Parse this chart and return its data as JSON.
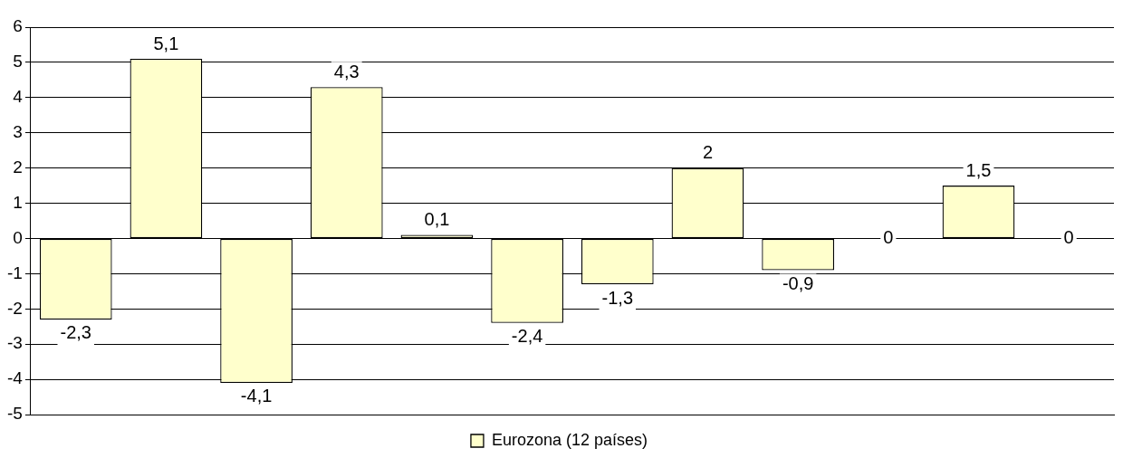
{
  "chart_data": {
    "type": "bar",
    "categories": [
      null,
      null,
      null,
      null,
      null,
      null,
      null,
      null,
      null,
      null,
      null,
      null
    ],
    "series": [
      {
        "name": "Eurozona (12 países)",
        "color": "#ffffcc",
        "values": [
          -2.3,
          5.1,
          -4.1,
          4.3,
          0.1,
          -2.4,
          -1.3,
          2,
          -0.9,
          0,
          1.5,
          0
        ],
        "value_labels": [
          "-2,3",
          "5,1",
          "-4,1",
          "4,3",
          "0,1",
          "-2,4",
          "-1,3",
          "2",
          "-0,9",
          "0",
          "1,5",
          "0"
        ]
      }
    ],
    "ylim": [
      -5,
      6
    ],
    "yticks": [
      -5,
      -4,
      -3,
      -2,
      -1,
      0,
      1,
      2,
      3,
      4,
      5,
      6
    ],
    "grid": "y",
    "legend": "bottom",
    "tick_labels": "y"
  }
}
